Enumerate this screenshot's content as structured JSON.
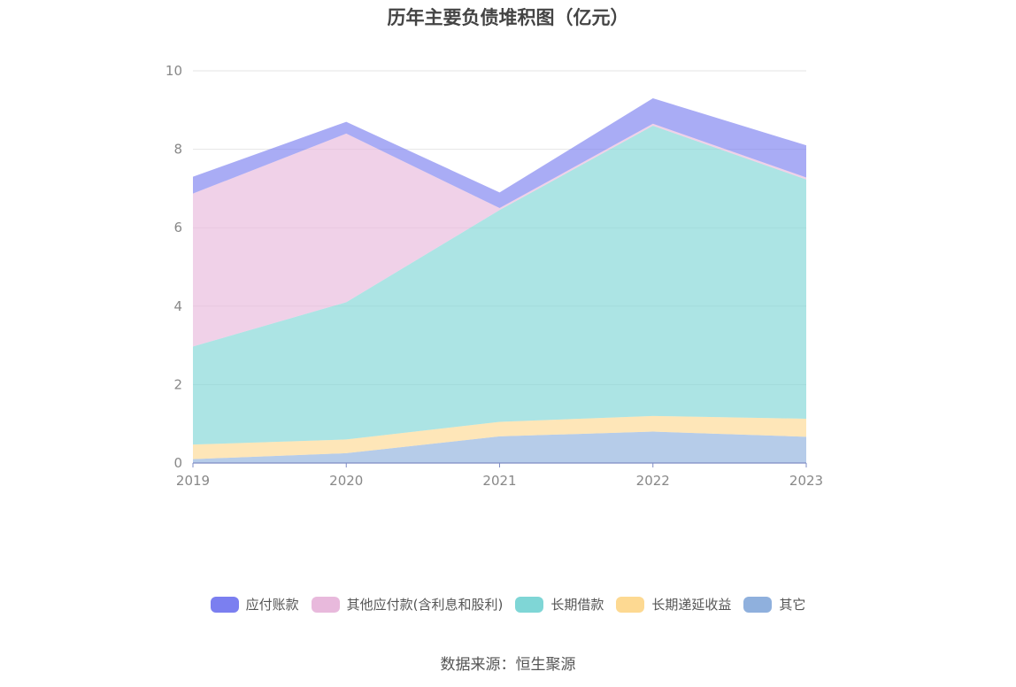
{
  "chart_data": {
    "type": "area",
    "title": "历年主要负债堆积图（亿元）",
    "categories": [
      "2019",
      "2020",
      "2021",
      "2022",
      "2023"
    ],
    "ylim": [
      0,
      10
    ],
    "yticks": [
      "0",
      "2",
      "4",
      "6",
      "8",
      "10"
    ],
    "stacked": true,
    "grid": true,
    "legend_position": "bottom",
    "series": [
      {
        "name": "其它",
        "color": "#8fb0dd",
        "values": [
          0.1,
          0.25,
          0.68,
          0.8,
          0.67
        ]
      },
      {
        "name": "长期递延收益",
        "color": "#fdd992",
        "values": [
          0.37,
          0.35,
          0.37,
          0.4,
          0.46
        ]
      },
      {
        "name": "长期借款",
        "color": "#7fd6d6",
        "values": [
          2.5,
          3.5,
          5.4,
          7.4,
          6.1
        ]
      },
      {
        "name": "其他应付款(含利息和股利)",
        "color": "#e8b9dc",
        "values": [
          3.9,
          4.3,
          0.05,
          0.05,
          0.05
        ]
      },
      {
        "name": "应付账款",
        "color": "#7b7ff0",
        "values": [
          0.43,
          0.3,
          0.4,
          0.65,
          0.82
        ]
      }
    ],
    "legend_order": [
      "应付账款",
      "其他应付款(含利息和股利)",
      "长期借款",
      "长期递延收益",
      "其它"
    ]
  },
  "source_text": "数据来源：恒生聚源"
}
